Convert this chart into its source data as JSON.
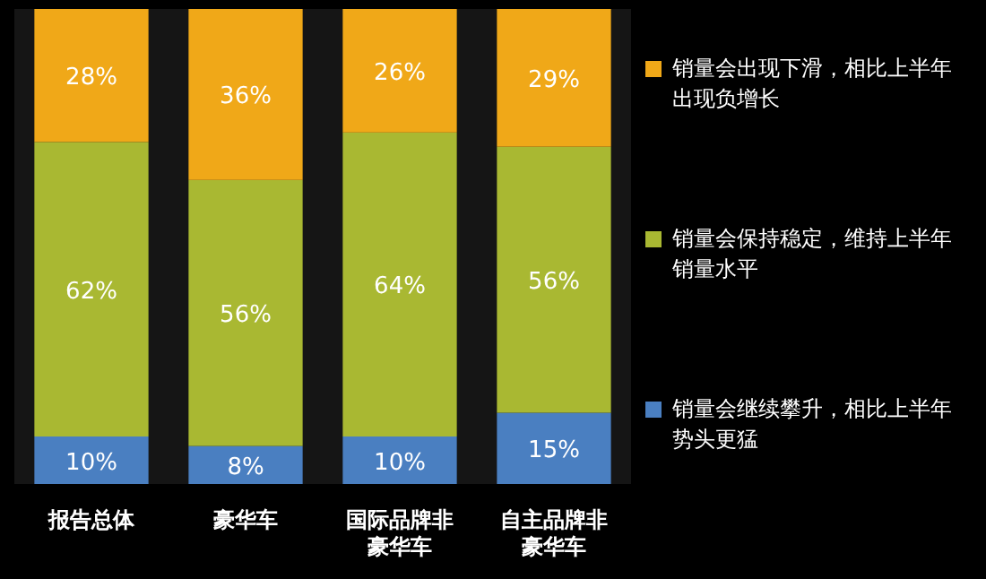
{
  "chart_data": {
    "type": "bar",
    "stacked": true,
    "legend": "right",
    "categories": [
      "报告总体",
      "豪华车",
      "国际品牌非豪华车",
      "自主品牌非豪华车"
    ],
    "series": [
      {
        "name": "销量会继续攀升，相比上半年势头更猛",
        "color": "#4a7fc1",
        "values": [
          10,
          8,
          10,
          15
        ],
        "value_labels": [
          "10%",
          "8%",
          "10%",
          "15%"
        ]
      },
      {
        "name": "销量会保持稳定，维持上半年销量水平",
        "color": "#a9b832",
        "values": [
          62,
          56,
          64,
          56
        ],
        "value_labels": [
          "62%",
          "56%",
          "64%",
          "56%"
        ]
      },
      {
        "name": "销量会出现下滑，相比上半年出现负增长",
        "color": "#f0a818",
        "values": [
          28,
          36,
          26,
          29
        ],
        "value_labels": [
          "28%",
          "36%",
          "26%",
          "29%"
        ]
      }
    ]
  }
}
